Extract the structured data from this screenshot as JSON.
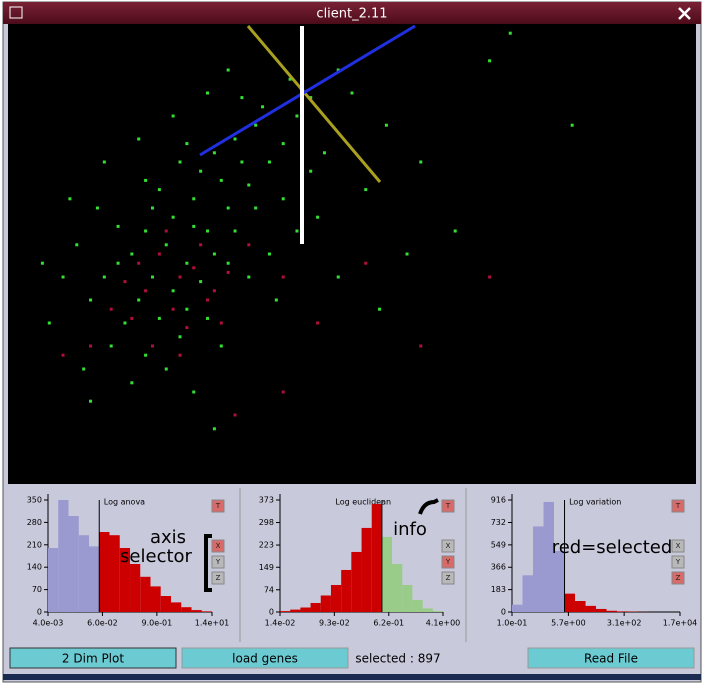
{
  "window_title": "client_2.11",
  "chart_data": [
    {
      "type": "scatter",
      "xlim": [
        0,
        100
      ],
      "ylim": [
        0,
        100
      ],
      "series": [
        {
          "color": "#33e033",
          "x": [
            28,
            30,
            25,
            33,
            36,
            22,
            27,
            31,
            24,
            20,
            18,
            23,
            26,
            29,
            32,
            35,
            38,
            40,
            42,
            37,
            34,
            21,
            19,
            24,
            28,
            17,
            22,
            26,
            15,
            20,
            25,
            18,
            23,
            14,
            12,
            16,
            13,
            10,
            8,
            30,
            33,
            36,
            40,
            44,
            46,
            50,
            48,
            41,
            55,
            60,
            5,
            6,
            11,
            27,
            31,
            29,
            35,
            38,
            42,
            39,
            45,
            52,
            58,
            65,
            70,
            73,
            82,
            9,
            14,
            19,
            24,
            29,
            32,
            20,
            26,
            34,
            44,
            16,
            21,
            27,
            32,
            12,
            30,
            48,
            54
          ],
          "values": [
            68,
            72,
            70,
            75,
            78,
            64,
            62,
            66,
            58,
            55,
            50,
            52,
            48,
            55,
            60,
            65,
            70,
            74,
            80,
            82,
            70,
            45,
            40,
            42,
            44,
            35,
            36,
            38,
            30,
            28,
            32,
            22,
            25,
            45,
            40,
            56,
            60,
            52,
            45,
            50,
            55,
            60,
            62,
            68,
            72,
            85,
            90,
            88,
            78,
            70,
            48,
            35,
            25,
            20,
            30,
            36,
            45,
            50,
            55,
            40,
            58,
            64,
            50,
            55,
            92,
            98,
            78,
            62,
            70,
            75,
            80,
            85,
            90,
            66,
            74,
            84,
            84,
            48,
            60,
            56,
            48,
            18,
            12,
            45,
            38
          ]
        },
        {
          "color": "#b0103a",
          "x": [
            22,
            25,
            20,
            27,
            24,
            18,
            28,
            30,
            23,
            19,
            26,
            21,
            29,
            32,
            17,
            25,
            31,
            15,
            35,
            40,
            12,
            8,
            45,
            60,
            33,
            40,
            52,
            70
          ],
          "values": [
            50,
            45,
            42,
            47,
            38,
            36,
            52,
            42,
            55,
            48,
            34,
            30,
            40,
            46,
            44,
            28,
            35,
            38,
            52,
            45,
            30,
            28,
            35,
            30,
            15,
            20,
            48,
            45
          ]
        }
      ]
    },
    {
      "type": "histogram",
      "title": "Log anova",
      "xscale": "log",
      "xlim": [
        0.004,
        14
      ],
      "xticks": [
        {
          "value": 0.004,
          "label": "4.0e-03"
        },
        {
          "value": 0.06,
          "label": "6.0e-02"
        },
        {
          "value": 0.9,
          "label": "9.0e-01"
        },
        {
          "value": 14,
          "label": "1.4e+01"
        }
      ],
      "ylim": [
        0,
        350
      ],
      "yticks": [
        0,
        70,
        140,
        210,
        280,
        350
      ],
      "bins": [
        0.004,
        0.00666,
        0.0111,
        0.0185,
        0.0308,
        0.0512,
        0.0853,
        0.142,
        0.237,
        0.394,
        0.656,
        1.09,
        1.82,
        3.03,
        5.05,
        8.4,
        14
      ],
      "series": [
        {
          "color": "#9a9ad0",
          "values": [
            200,
            350,
            300,
            240,
            205,
            null,
            null,
            null,
            null,
            null,
            null,
            null,
            null,
            null,
            null,
            null
          ]
        },
        {
          "color": "#cc0000",
          "values": [
            null,
            null,
            null,
            null,
            null,
            250,
            240,
            200,
            150,
            110,
            80,
            50,
            30,
            15,
            6,
            2
          ]
        }
      ],
      "buttons": [
        {
          "label": "T",
          "selected": true
        },
        {
          "label": "X",
          "selected": true
        },
        {
          "label": "Y",
          "selected": false
        },
        {
          "label": "Z",
          "selected": false
        }
      ]
    },
    {
      "type": "histogram",
      "title": "Log euclidean",
      "xscale": "log",
      "xlim": [
        0.014,
        4.1
      ],
      "xticks": [
        {
          "value": 0.014,
          "label": "1.4e-02"
        },
        {
          "value": 0.093,
          "label": "9.3e-02"
        },
        {
          "value": 0.62,
          "label": "6.2e-01"
        },
        {
          "value": 4.1,
          "label": "4.1e+00"
        }
      ],
      "ylim": [
        0,
        373
      ],
      "yticks": [
        0,
        74,
        149,
        223,
        298,
        373
      ],
      "bins": [
        0.014,
        0.02,
        0.0285,
        0.0406,
        0.0579,
        0.0826,
        0.118,
        0.168,
        0.24,
        0.342,
        0.488,
        0.695,
        0.992,
        1.41,
        2.02,
        2.88,
        4.1
      ],
      "series": [
        {
          "color": "#cc0000",
          "values": [
            3,
            8,
            15,
            30,
            55,
            90,
            140,
            200,
            280,
            360,
            null,
            null,
            null,
            null,
            null,
            null
          ]
        },
        {
          "color": "#99cc88",
          "values": [
            null,
            null,
            null,
            null,
            null,
            null,
            null,
            null,
            null,
            null,
            250,
            160,
            90,
            40,
            12,
            3
          ]
        }
      ],
      "buttons": [
        {
          "label": "T",
          "selected": true
        },
        {
          "label": "X",
          "selected": false
        },
        {
          "label": "Y",
          "selected": true
        },
        {
          "label": "Z",
          "selected": false
        }
      ]
    },
    {
      "type": "histogram",
      "title": "Log variation",
      "xscale": "log",
      "xlim": [
        0.1,
        17000
      ],
      "xticks": [
        {
          "value": 0.1,
          "label": "1.0e-01"
        },
        {
          "value": 5.7,
          "label": "5.7e+00"
        },
        {
          "value": 310,
          "label": "3.1e+02"
        },
        {
          "value": 17000,
          "label": "1.7e+04"
        }
      ],
      "ylim": [
        0,
        916
      ],
      "yticks": [
        0,
        183,
        366,
        549,
        732,
        916
      ],
      "bins": [
        0.1,
        0.212,
        0.451,
        0.957,
        2.03,
        4.32,
        9.16,
        19.5,
        41.3,
        87.7,
        186,
        395,
        839,
        1780,
        3780,
        8040,
        17000
      ],
      "series": [
        {
          "color": "#9a9ad0",
          "values": [
            60,
            300,
            700,
            900,
            500,
            null,
            null,
            null,
            null,
            null,
            null,
            null,
            null,
            null,
            null,
            null
          ]
        },
        {
          "color": "#cc0000",
          "values": [
            null,
            null,
            null,
            null,
            null,
            150,
            90,
            50,
            25,
            10,
            5,
            3,
            1,
            0,
            0,
            0
          ]
        }
      ],
      "buttons": [
        {
          "label": "T",
          "selected": true
        },
        {
          "label": "X",
          "selected": false
        },
        {
          "label": "Y",
          "selected": false
        },
        {
          "label": "Z",
          "selected": true
        }
      ]
    }
  ],
  "annotations": {
    "axis_selector": [
      "axis",
      "selector"
    ],
    "info": "info",
    "red_selected": "red=selected"
  },
  "toolbar": {
    "plot_button": "2 Dim Plot",
    "load_button": "load genes",
    "status": "selected : 897",
    "read_button": "Read File"
  }
}
